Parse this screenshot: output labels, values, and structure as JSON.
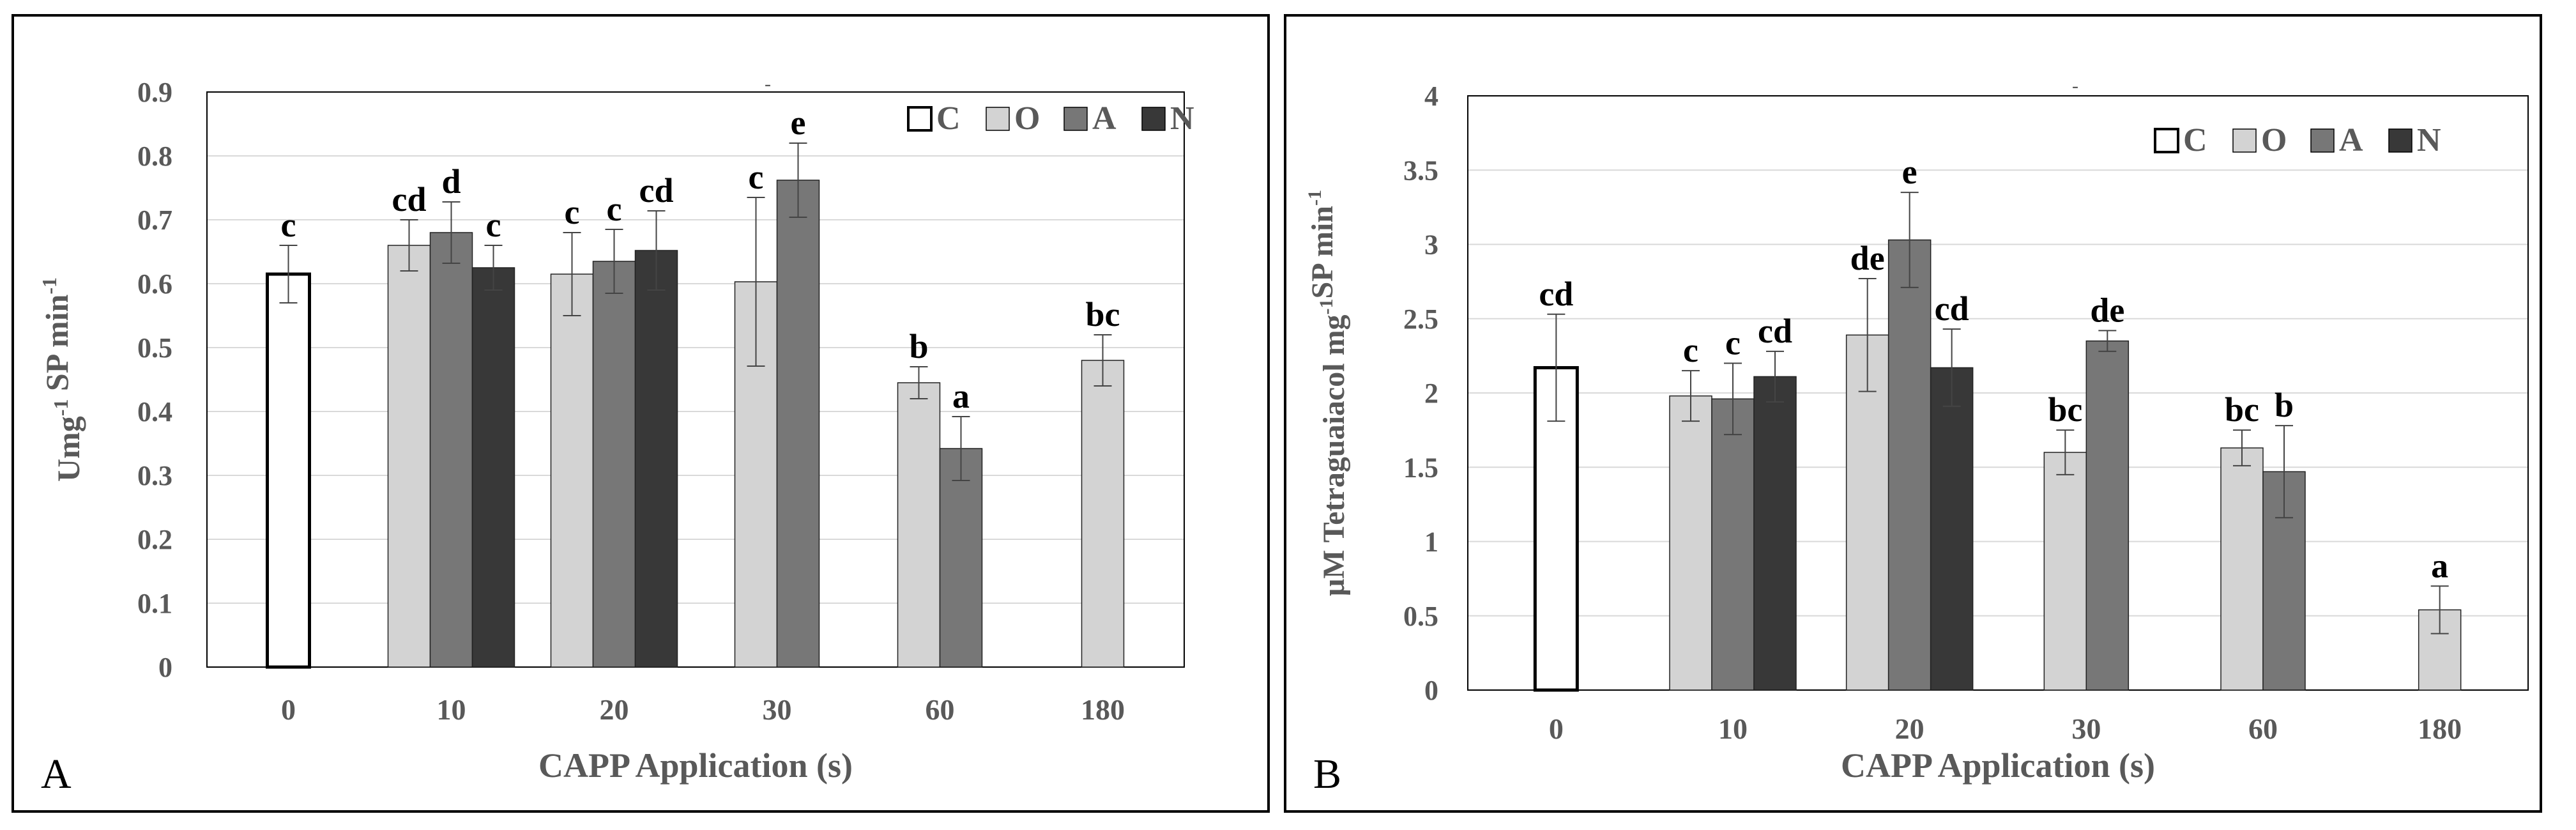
{
  "colors": {
    "C": "#ffffff",
    "O": "#d3d3d3",
    "A": "#777777",
    "N": "#383838",
    "grid": "#d9d9d9",
    "axisText": "#595959",
    "text": "#000000"
  },
  "chart_data": [
    {
      "type": "bar",
      "panel": "A",
      "xlabel": "CAPP Application (s)",
      "ylabel": "Umg-1 SP min-1",
      "ylim": [
        0,
        0.9
      ],
      "yticks": [
        "0",
        "0.1",
        "0.2",
        "0.3",
        "0.4",
        "0.5",
        "0.6",
        "0.7",
        "0.8",
        "0.9"
      ],
      "categories": [
        "0",
        "10",
        "20",
        "30",
        "60",
        "180"
      ],
      "legend": [
        "C",
        "O",
        "A",
        "N"
      ],
      "legend_position": "top-right",
      "title_mark": "-",
      "groups": [
        {
          "category": "0",
          "bars": [
            {
              "series": "C",
              "value": 0.615,
              "err": 0.045,
              "label": "c"
            }
          ]
        },
        {
          "category": "10",
          "bars": [
            {
              "series": "O",
              "value": 0.66,
              "err": 0.04,
              "label": "cd"
            },
            {
              "series": "A",
              "value": 0.68,
              "err": 0.048,
              "label": "d"
            },
            {
              "series": "N",
              "value": 0.625,
              "err": 0.035,
              "label": "c"
            }
          ]
        },
        {
          "category": "20",
          "bars": [
            {
              "series": "O",
              "value": 0.615,
              "err": 0.065,
              "label": "c"
            },
            {
              "series": "A",
              "value": 0.635,
              "err": 0.05,
              "label": "c"
            },
            {
              "series": "N",
              "value": 0.652,
              "err": 0.062,
              "label": "cd"
            }
          ]
        },
        {
          "category": "30",
          "bars": [
            {
              "series": "O",
              "value": 0.603,
              "err": 0.132,
              "label": "c"
            },
            {
              "series": "A",
              "value": 0.762,
              "err": 0.058,
              "label": "e"
            }
          ]
        },
        {
          "category": "60",
          "bars": [
            {
              "series": "O",
              "value": 0.445,
              "err": 0.025,
              "label": "b"
            },
            {
              "series": "A",
              "value": 0.342,
              "err": 0.05,
              "label": "a"
            }
          ]
        },
        {
          "category": "180",
          "bars": [
            {
              "series": "O",
              "value": 0.48,
              "err": 0.04,
              "label": "bc"
            }
          ]
        }
      ]
    },
    {
      "type": "bar",
      "panel": "B",
      "xlabel": "CAPP Application (s)",
      "ylabel": "μM Tetraguaiacol mg-1SP min-1",
      "ylim": [
        0,
        4
      ],
      "yticks": [
        "0",
        "0.5",
        "1",
        "1.5",
        "2",
        "2.5",
        "3",
        "3.5",
        "4"
      ],
      "categories": [
        "0",
        "10",
        "20",
        "30",
        "60",
        "180"
      ],
      "legend": [
        "C",
        "O",
        "A",
        "N"
      ],
      "legend_position": "top-right",
      "title_mark": "-",
      "groups": [
        {
          "category": "0",
          "bars": [
            {
              "series": "C",
              "value": 2.17,
              "err": 0.36,
              "label": "cd"
            }
          ]
        },
        {
          "category": "10",
          "bars": [
            {
              "series": "O",
              "value": 1.98,
              "err": 0.17,
              "label": "c"
            },
            {
              "series": "A",
              "value": 1.96,
              "err": 0.24,
              "label": "c"
            },
            {
              "series": "N",
              "value": 2.11,
              "err": 0.17,
              "label": "cd"
            }
          ]
        },
        {
          "category": "20",
          "bars": [
            {
              "series": "O",
              "value": 2.39,
              "err": 0.38,
              "label": "de"
            },
            {
              "series": "A",
              "value": 3.03,
              "err": 0.32,
              "label": "e"
            },
            {
              "series": "N",
              "value": 2.17,
              "err": 0.26,
              "label": "cd"
            }
          ]
        },
        {
          "category": "30",
          "bars": [
            {
              "series": "O",
              "value": 1.6,
              "err": 0.15,
              "label": "bc"
            },
            {
              "series": "A",
              "value": 2.35,
              "err": 0.07,
              "label": "de"
            }
          ]
        },
        {
          "category": "60",
          "bars": [
            {
              "series": "O",
              "value": 1.63,
              "err": 0.12,
              "label": "bc"
            },
            {
              "series": "A",
              "value": 1.47,
              "err": 0.31,
              "label": "b"
            }
          ]
        },
        {
          "category": "180",
          "bars": [
            {
              "series": "O",
              "value": 0.54,
              "err": 0.16,
              "label": "a"
            }
          ]
        }
      ]
    }
  ],
  "panels": {
    "A": {
      "letter": "A"
    },
    "B": {
      "letter": "B"
    }
  }
}
